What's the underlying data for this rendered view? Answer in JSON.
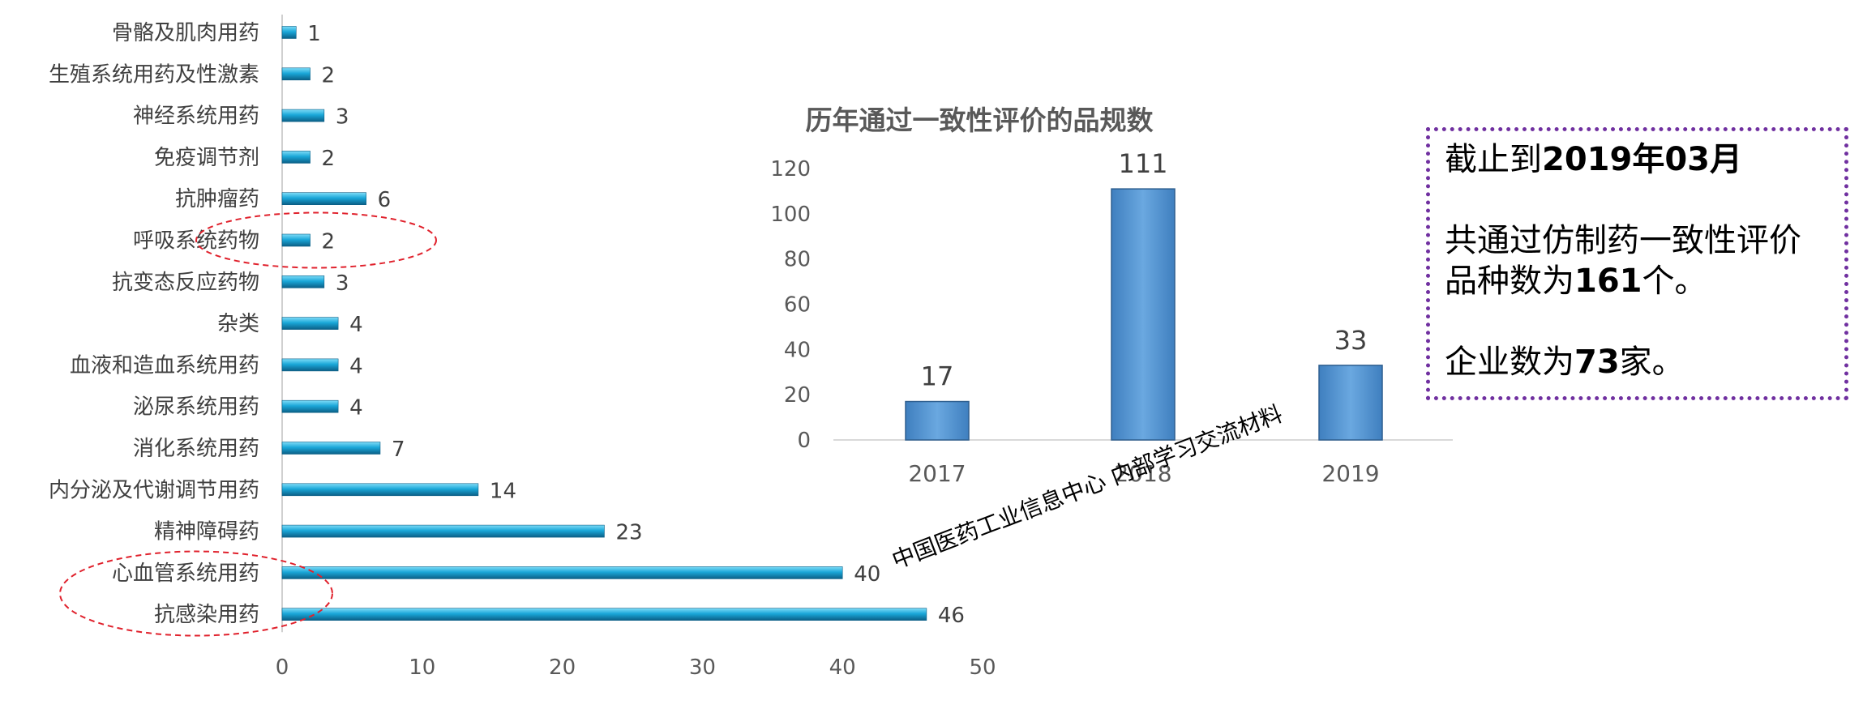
{
  "chart_data": [
    {
      "type": "bar",
      "orientation": "horizontal",
      "categories": [
        "骨骼及肌肉用药",
        "生殖系统用药及性激素",
        "神经系统用药",
        "免疫调节剂",
        "抗肿瘤药",
        "呼吸系统药物",
        "抗变态反应药物",
        "杂类",
        "血液和造血系统用药",
        "泌尿系统用药",
        "消化系统用药",
        "内分泌及代谢调节用药",
        "精神障碍药",
        "心血管系统用药",
        "抗感染用药"
      ],
      "values": [
        1,
        2,
        3,
        2,
        6,
        2,
        3,
        4,
        4,
        4,
        7,
        14,
        23,
        40,
        46
      ],
      "xlim": [
        0,
        50
      ],
      "xticks": [
        0,
        10,
        20,
        30,
        40,
        50
      ],
      "highlighted": [
        "呼吸系统药物",
        "心血管系统用药",
        "抗感染用药"
      ],
      "bar_color": "#1aa7d8",
      "highlight_color": "#e0212c"
    },
    {
      "type": "bar",
      "title": "历年通过一致性评价的品规数",
      "categories": [
        "2017",
        "2018",
        "2019"
      ],
      "values": [
        17,
        111,
        33
      ],
      "ylim": [
        0,
        120
      ],
      "yticks": [
        0,
        20,
        40,
        60,
        80,
        100,
        120
      ],
      "bar_color": "#5b9bd5"
    }
  ],
  "watermark": "中国医药工业信息中心 内部学习交流材料",
  "note": {
    "line1_prefix": "截止到",
    "line1_bold": "2019年03月",
    "line2_prefix": "共通过仿制药一致性评价品种数为",
    "line2_bold": "161",
    "line2_suffix": "个。",
    "line3_prefix": "企业数为",
    "line3_bold": "73",
    "line3_suffix": "家。",
    "border_color": "#7030a0"
  }
}
